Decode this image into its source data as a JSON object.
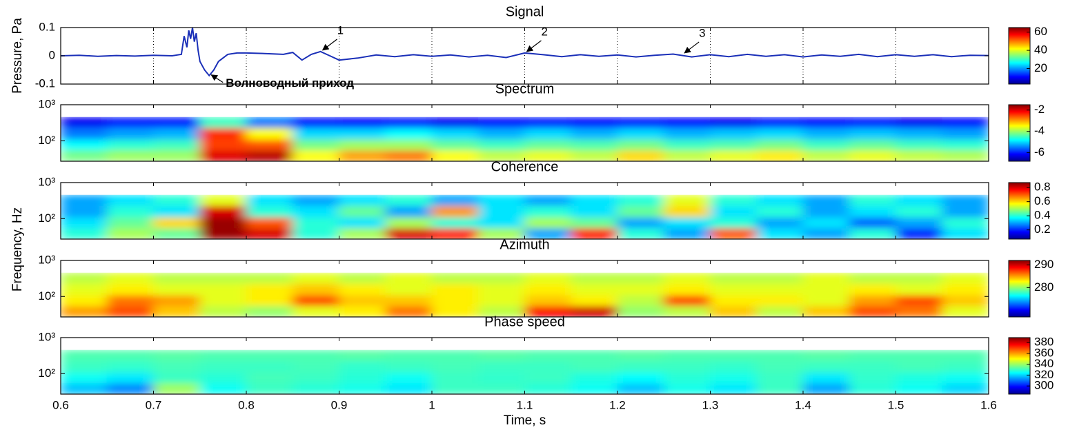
{
  "chart_data": [
    {
      "type": "line",
      "title": "Signal",
      "y_label": "Pressure, Pa",
      "xlim": [
        0.6,
        1.6
      ],
      "ylim": [
        -0.1,
        0.1
      ],
      "yticks": [
        -0.1,
        0,
        0.1
      ],
      "grid": "x",
      "series": [
        {
          "color": "#1a2fb8",
          "x": [
            0.6,
            0.62,
            0.64,
            0.66,
            0.68,
            0.7,
            0.72,
            0.73,
            0.733,
            0.736,
            0.738,
            0.74,
            0.742,
            0.744,
            0.746,
            0.748,
            0.75,
            0.755,
            0.76,
            0.765,
            0.77,
            0.78,
            0.79,
            0.8,
            0.82,
            0.84,
            0.85,
            0.86,
            0.87,
            0.88,
            0.89,
            0.9,
            0.92,
            0.94,
            0.96,
            0.98,
            1.0,
            1.02,
            1.04,
            1.06,
            1.08,
            1.1,
            1.12,
            1.14,
            1.16,
            1.18,
            1.2,
            1.22,
            1.24,
            1.26,
            1.28,
            1.3,
            1.32,
            1.34,
            1.36,
            1.38,
            1.4,
            1.42,
            1.44,
            1.46,
            1.48,
            1.5,
            1.52,
            1.54,
            1.56,
            1.58,
            1.6
          ],
          "values": [
            0,
            0.002,
            -0.002,
            0.001,
            -0.001,
            0.002,
            0,
            0.005,
            0.07,
            0.03,
            0.09,
            0.06,
            0.1,
            0.05,
            0.08,
            0.02,
            -0.02,
            -0.05,
            -0.07,
            -0.05,
            -0.02,
            0.005,
            0.01,
            0.01,
            0.008,
            0.005,
            0.012,
            -0.015,
            0.005,
            0.015,
            0,
            -0.015,
            -0.008,
            0.003,
            -0.003,
            0.004,
            -0.002,
            0.003,
            -0.004,
            0.002,
            -0.006,
            0.01,
            0.004,
            -0.003,
            0.004,
            -0.002,
            0.003,
            -0.004,
            0.002,
            0.006,
            -0.004,
            0.004,
            -0.003,
            0.005,
            -0.002,
            0.004,
            -0.004,
            0.003,
            -0.002,
            0.005,
            -0.003,
            0.004,
            -0.002,
            0.004,
            -0.003,
            0.002,
            0.001
          ]
        }
      ],
      "annotations": [
        {
          "text": "1",
          "x": 0.88,
          "y": 0.015
        },
        {
          "text": "2",
          "x": 1.1,
          "y": 0.01
        },
        {
          "text": "3",
          "x": 1.27,
          "y": 0.005
        },
        {
          "text": "Волноводный приход",
          "x": 0.76,
          "y": -0.065
        }
      ],
      "colorbar": {
        "clim": [
          3,
          65
        ],
        "ticks": [
          20,
          40,
          60
        ]
      }
    },
    {
      "type": "heatmap",
      "title": "Spectrum",
      "xlim": [
        0.6,
        1.6
      ],
      "ylim": [
        27,
        1000
      ],
      "log_y": true,
      "yticks": [
        {
          "value": 100,
          "label": "10²"
        },
        {
          "value": 1000,
          "label": "10³"
        }
      ],
      "x_bins": [
        0.6,
        0.65,
        0.7,
        0.75,
        0.8,
        0.85,
        0.9,
        0.95,
        1.0,
        1.05,
        1.1,
        1.15,
        1.2,
        1.25,
        1.3,
        1.35,
        1.4,
        1.45,
        1.5,
        1.55,
        1.6
      ],
      "y_bins": [
        27,
        55,
        110,
        230,
        457
      ],
      "values": [
        [
          -4.2,
          -4,
          -4,
          -2,
          -1.8,
          -3.5,
          -3,
          -2.8,
          -3.5,
          -3.8,
          -3.6,
          -3.8,
          -3.3,
          -3.8,
          -3.6,
          -3.4,
          -3.8,
          -3.6,
          -3.8,
          -3.9
        ],
        [
          -4.8,
          -4.6,
          -4.5,
          -2.5,
          -2.6,
          -4.2,
          -4,
          -4,
          -4.3,
          -4.5,
          -4.3,
          -4.4,
          -4.2,
          -4.5,
          -4.4,
          -4.2,
          -4.5,
          -4.3,
          -4.5,
          -4.6
        ],
        [
          -5.5,
          -5.3,
          -5.2,
          -2.4,
          -3.5,
          -5,
          -5,
          -4.8,
          -5,
          -5.2,
          -5,
          -5.2,
          -5,
          -5.2,
          -5.1,
          -5,
          -5.2,
          -5.1,
          -5.2,
          -5.3
        ],
        [
          -6.2,
          -6,
          -6,
          -4.5,
          -5.5,
          -6,
          -6.1,
          -6,
          -6.2,
          -6.1,
          -6,
          -6.1,
          -6,
          -6.1,
          -6.2,
          -6,
          -6.1,
          -6,
          -6.2,
          -6.1
        ]
      ],
      "colormap": "jet",
      "colorbar": {
        "clim": [
          -6.8,
          -1.5
        ],
        "ticks": [
          -2,
          -4,
          -6
        ]
      }
    },
    {
      "type": "heatmap",
      "title": "Coherence",
      "y_label": "Frequency, Hz",
      "xlim": [
        0.6,
        1.6
      ],
      "ylim": [
        27,
        1000
      ],
      "log_y": true,
      "yticks": [
        {
          "value": 100,
          "label": "10²"
        },
        {
          "value": 1000,
          "label": "10³"
        }
      ],
      "x_bins": [
        0.6,
        0.65,
        0.7,
        0.75,
        0.8,
        0.85,
        0.9,
        0.95,
        1.0,
        1.05,
        1.1,
        1.15,
        1.2,
        1.25,
        1.3,
        1.35,
        1.4,
        1.45,
        1.5,
        1.55,
        1.6
      ],
      "y_bins": [
        27,
        55,
        110,
        230,
        457
      ],
      "values": [
        [
          0.4,
          0.5,
          0.45,
          0.85,
          0.8,
          0.4,
          0.5,
          0.8,
          0.75,
          0.5,
          0.3,
          0.75,
          0.4,
          0.3,
          0.7,
          0.35,
          0.3,
          0.4,
          0.2,
          0.35
        ],
        [
          0.35,
          0.45,
          0.6,
          0.85,
          0.7,
          0.4,
          0.35,
          0.5,
          0.4,
          0.35,
          0.5,
          0.45,
          0.3,
          0.35,
          0.4,
          0.3,
          0.35,
          0.25,
          0.3,
          0.4
        ],
        [
          0.3,
          0.4,
          0.35,
          0.8,
          0.4,
          0.35,
          0.45,
          0.3,
          0.65,
          0.35,
          0.4,
          0.35,
          0.45,
          0.6,
          0.35,
          0.4,
          0.3,
          0.35,
          0.4,
          0.3
        ],
        [
          0.3,
          0.35,
          0.4,
          0.55,
          0.35,
          0.3,
          0.35,
          0.4,
          0.3,
          0.35,
          0.3,
          0.35,
          0.4,
          0.55,
          0.4,
          0.35,
          0.3,
          0.4,
          0.35,
          0.3
        ]
      ],
      "colormap": "jet",
      "colorbar": {
        "clim": [
          0.07,
          0.87
        ],
        "ticks": [
          0.8,
          0.6,
          0.4,
          0.2
        ]
      }
    },
    {
      "type": "heatmap",
      "title": "Azimuth",
      "xlim": [
        0.6,
        1.6
      ],
      "ylim": [
        27,
        1000
      ],
      "log_y": true,
      "yticks": [
        {
          "value": 100,
          "label": "10²"
        },
        {
          "value": 1000,
          "label": "10³"
        }
      ],
      "x_bins": [
        0.6,
        0.65,
        0.7,
        0.75,
        0.8,
        0.85,
        0.9,
        0.95,
        1.0,
        1.05,
        1.1,
        1.15,
        1.2,
        1.25,
        1.3,
        1.35,
        1.4,
        1.45,
        1.5,
        1.55,
        1.6
      ],
      "y_bins": [
        27,
        55,
        110,
        230,
        457
      ],
      "values": [
        [
          285,
          287,
          284,
          281,
          280,
          282,
          283,
          286,
          283,
          281,
          289,
          290,
          280,
          281,
          284,
          281,
          284,
          287,
          286,
          282
        ],
        [
          283,
          286,
          285,
          282,
          283,
          287,
          284,
          284,
          283,
          282,
          284,
          283,
          281,
          287,
          283,
          283,
          282,
          285,
          287,
          284
        ],
        [
          282,
          283,
          282,
          282,
          283,
          284,
          283,
          282,
          283,
          282,
          283,
          282,
          282,
          283,
          282,
          282,
          282,
          283,
          282,
          283
        ],
        [
          281,
          282,
          281,
          281,
          281,
          282,
          281,
          282,
          281,
          281,
          282,
          281,
          281,
          282,
          281,
          281,
          282,
          281,
          281,
          282
        ]
      ],
      "colormap": "jet",
      "colorbar": {
        "clim": [
          267,
          292
        ],
        "ticks": [
          290,
          280
        ]
      }
    },
    {
      "type": "heatmap",
      "title": "Phase speed",
      "x_label": "Time, s",
      "xlim": [
        0.6,
        1.6
      ],
      "ylim": [
        27,
        1000
      ],
      "log_y": true,
      "xticks": [
        0.6,
        0.7,
        0.8,
        0.9,
        1,
        1.1,
        1.2,
        1.3,
        1.4,
        1.5,
        1.6
      ],
      "yticks": [
        {
          "value": 100,
          "label": "10²"
        },
        {
          "value": 1000,
          "label": "10³"
        }
      ],
      "x_bins": [
        0.6,
        0.65,
        0.7,
        0.75,
        0.8,
        0.85,
        0.9,
        0.95,
        1.0,
        1.05,
        1.1,
        1.15,
        1.2,
        1.25,
        1.3,
        1.35,
        1.4,
        1.45,
        1.5,
        1.55,
        1.6
      ],
      "y_bins": [
        27,
        55,
        110,
        230,
        457
      ],
      "values": [
        [
          318,
          312,
          340,
          325,
          330,
          328,
          326,
          322,
          330,
          330,
          328,
          325,
          318,
          326,
          322,
          330,
          315,
          328,
          325,
          320
        ],
        [
          325,
          322,
          330,
          328,
          331,
          330,
          328,
          325,
          330,
          329,
          330,
          327,
          324,
          328,
          326,
          330,
          322,
          329,
          327,
          325
        ],
        [
          330,
          329,
          331,
          330,
          330,
          331,
          329,
          330,
          331,
          330,
          330,
          331,
          330,
          330,
          329,
          331,
          330,
          330,
          331,
          330
        ],
        [
          332,
          332,
          333,
          332,
          332,
          332,
          333,
          332,
          332,
          333,
          332,
          332,
          333,
          332,
          332,
          332,
          333,
          332,
          332,
          332
        ]
      ],
      "colormap": "jet",
      "colorbar": {
        "clim": [
          285,
          389
        ],
        "ticks": [
          380,
          360,
          340,
          320,
          300
        ]
      }
    }
  ]
}
